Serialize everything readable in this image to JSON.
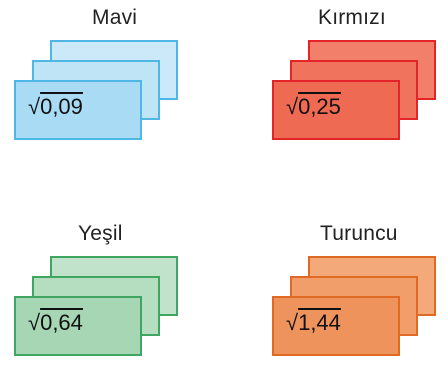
{
  "groups": [
    {
      "label": "Mavi",
      "value": "0,09",
      "radical": "√"
    },
    {
      "label": "Kırmızı",
      "value": "0,25",
      "radical": "√"
    },
    {
      "label": "Yeşil",
      "value": "0,64",
      "radical": "√"
    },
    {
      "label": "Turuncu",
      "value": "1,44",
      "radical": "√"
    }
  ],
  "colors": {
    "blue": "#a9dcf4",
    "red": "#ee6a53",
    "green": "#a6d6b3",
    "orange": "#ef935d"
  }
}
